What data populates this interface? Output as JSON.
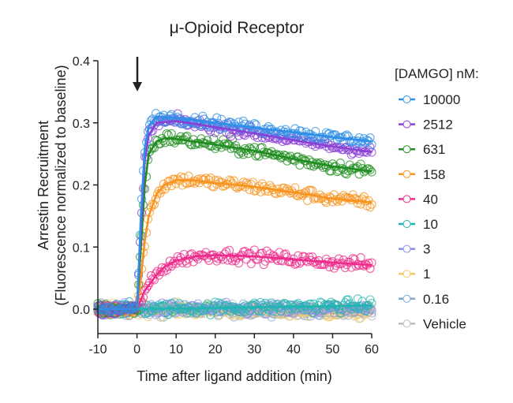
{
  "chart_data": {
    "type": "scatter",
    "title": "μ-Opioid Receptor",
    "xlabel": "Time after ligand addition (min)",
    "ylabel": [
      "Arrestin Recruitment",
      "(Fluorescence normalized to baseline)"
    ],
    "xlim": [
      -10,
      60
    ],
    "ylim": [
      -0.04,
      0.4
    ],
    "xticks": [
      -10,
      0,
      10,
      20,
      30,
      40,
      50,
      60
    ],
    "xtick_labels": [
      "-10",
      "0",
      "10",
      "20",
      "30",
      "40",
      "50",
      "60"
    ],
    "yticks": [
      0.0,
      0.1,
      0.2,
      0.3,
      0.4
    ],
    "ytick_labels": [
      "0.0",
      "0.1",
      "0.2",
      "0.3",
      "0.4"
    ],
    "annotation": "arrow at ligand addition (t = 0)",
    "arrow_x": 0,
    "legend_title": "[DAMGO] nM:",
    "legend_position": "right",
    "grid": false,
    "point_spacing_min": 0.4,
    "series": [
      {
        "name": "10000",
        "color": "#2f8fe6",
        "noise": 0.006,
        "fit_x": [
          -10,
          0,
          1,
          2,
          3,
          5,
          10,
          20,
          30,
          40,
          50,
          60
        ],
        "fit_y": [
          0,
          0,
          0.15,
          0.26,
          0.295,
          0.31,
          0.308,
          0.3,
          0.292,
          0.285,
          0.277,
          0.27
        ],
        "show_fit": true
      },
      {
        "name": "2512",
        "color": "#8a3fd6",
        "noise": 0.006,
        "fit_x": [
          -10,
          0,
          1,
          2,
          3,
          5,
          10,
          20,
          30,
          40,
          50,
          60
        ],
        "fit_y": [
          0,
          0,
          0.13,
          0.24,
          0.28,
          0.3,
          0.303,
          0.293,
          0.283,
          0.272,
          0.262,
          0.253
        ],
        "show_fit": true
      },
      {
        "name": "631",
        "color": "#1e8c1e",
        "noise": 0.007,
        "fit_x": [
          -10,
          0,
          1,
          2,
          3,
          5,
          7,
          10,
          20,
          30,
          40,
          50,
          60
        ],
        "fit_y": [
          0,
          0,
          0.1,
          0.2,
          0.25,
          0.27,
          0.275,
          0.274,
          0.265,
          0.255,
          0.242,
          0.23,
          0.222
        ],
        "show_fit": true
      },
      {
        "name": "158",
        "color": "#f7931e",
        "noise": 0.007,
        "fit_x": [
          -10,
          0,
          1,
          2,
          3,
          5,
          7,
          10,
          15,
          20,
          30,
          40,
          50,
          60
        ],
        "fit_y": [
          0,
          0,
          0.05,
          0.11,
          0.15,
          0.185,
          0.2,
          0.208,
          0.207,
          0.203,
          0.197,
          0.188,
          0.178,
          0.172
        ],
        "show_fit": true
      },
      {
        "name": "40",
        "color": "#ee2a8a",
        "noise": 0.007,
        "fit_x": [
          -10,
          0,
          2,
          5,
          7,
          10,
          15,
          20,
          30,
          40,
          50,
          60
        ],
        "fit_y": [
          0,
          0,
          0.03,
          0.055,
          0.068,
          0.078,
          0.085,
          0.087,
          0.085,
          0.08,
          0.075,
          0.071
        ],
        "show_fit": true
      },
      {
        "name": "10",
        "color": "#1fb5b0",
        "noise": 0.007,
        "fit_x": [
          -10,
          0,
          60
        ],
        "fit_y": [
          0,
          0,
          0.006
        ],
        "show_fit": true
      },
      {
        "name": "3",
        "color": "#8c8cf0",
        "noise": 0.007,
        "fit_x": [
          -10,
          0,
          60
        ],
        "fit_y": [
          0,
          0,
          -0.002
        ],
        "show_fit": false
      },
      {
        "name": "1",
        "color": "#f5c96a",
        "noise": 0.007,
        "fit_x": [
          -10,
          0,
          60
        ],
        "fit_y": [
          0,
          0,
          -0.006
        ],
        "show_fit": false
      },
      {
        "name": "0.16",
        "color": "#7fa9d0",
        "noise": 0.007,
        "fit_x": [
          -10,
          0,
          60
        ],
        "fit_y": [
          0,
          0,
          -0.004
        ],
        "show_fit": false
      },
      {
        "name": "Vehicle",
        "color": "#bdbdbd",
        "noise": 0.007,
        "fit_x": [
          -10,
          0,
          60
        ],
        "fit_y": [
          0,
          0,
          -0.003
        ],
        "show_fit": false
      }
    ]
  }
}
